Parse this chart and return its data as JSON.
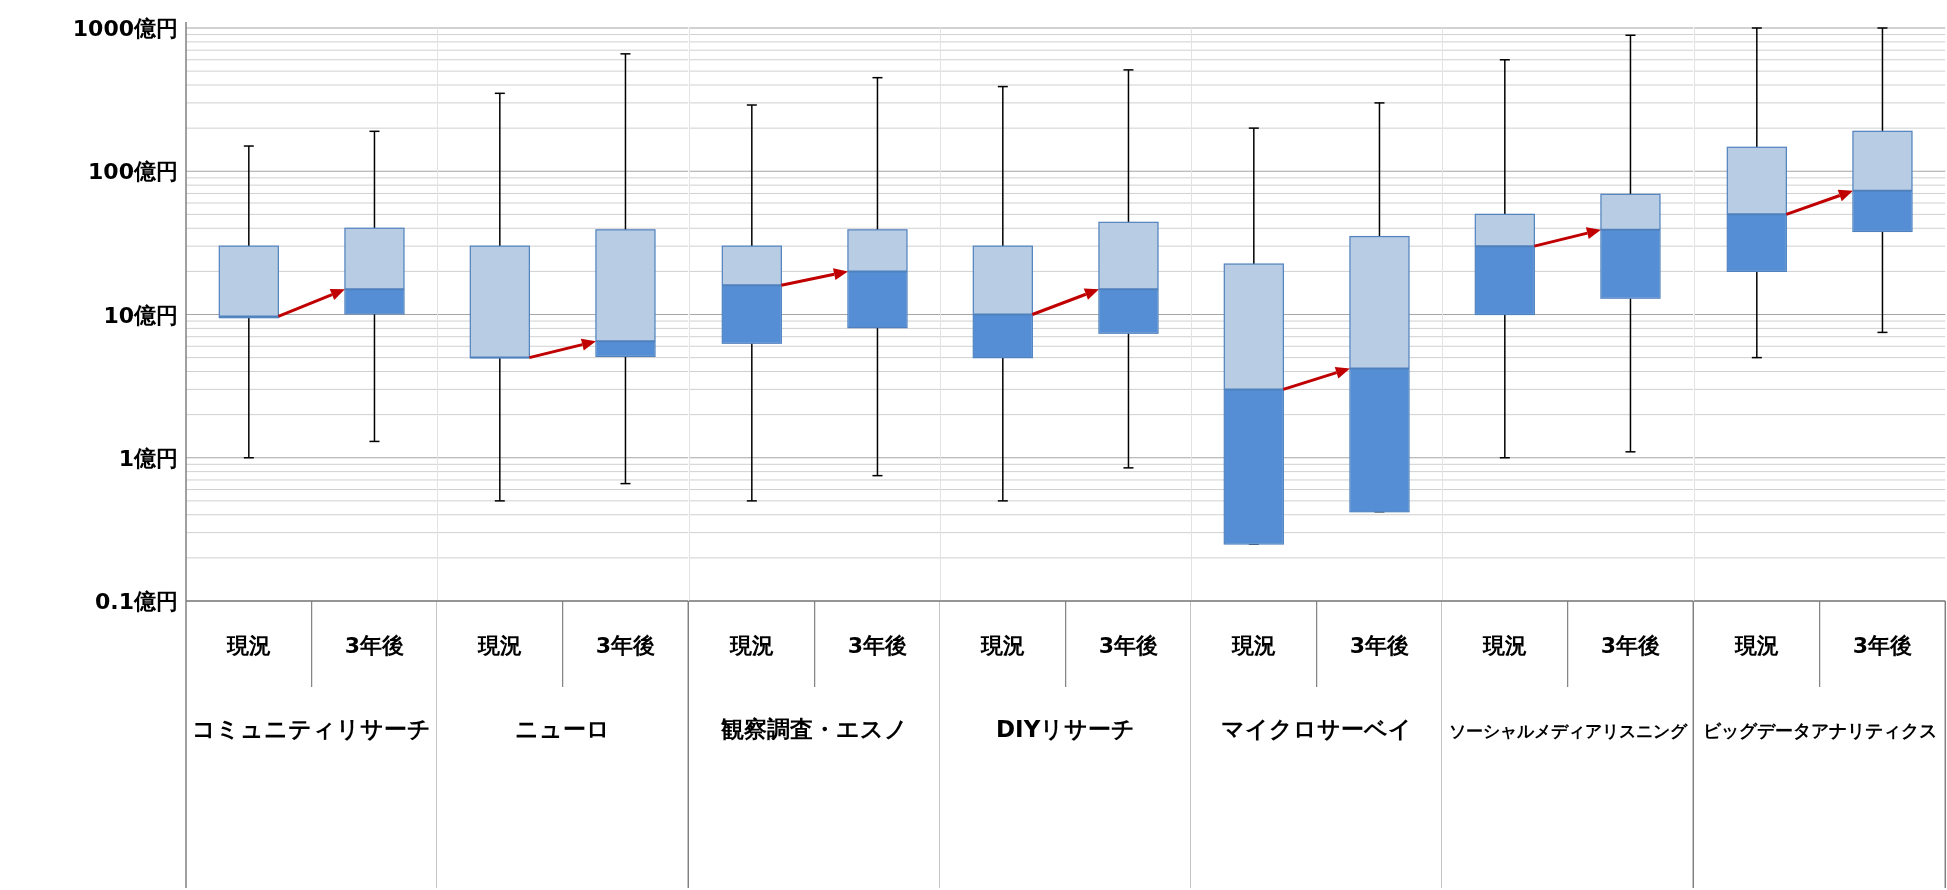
{
  "chart_data": [
    {
      "type": "box",
      "log": true,
      "grid": true,
      "title": "コミュニティリサーチ",
      "categories": [
        "現況",
        "3年後"
      ],
      "ylim": [
        0.1,
        1000
      ],
      "yticks": [
        {
          "value": 0.1,
          "label": "0.1億円"
        },
        {
          "value": 1,
          "label": "1億円"
        },
        {
          "value": 10,
          "label": "10億円"
        },
        {
          "value": 100,
          "label": "100億円"
        },
        {
          "value": 1000,
          "label": "1000億円"
        }
      ],
      "color": "#b8cce4",
      "boxes": [
        {
          "low": 1,
          "q1": 9.5,
          "median": 9.7,
          "q3": 30,
          "high": 150
        },
        {
          "low": 1.3,
          "q1": 10.1,
          "median": 15,
          "q3": 40,
          "high": 190
        }
      ]
    },
    {
      "type": "box",
      "log": true,
      "grid": true,
      "tick_labels": "x",
      "title": "ニューロ",
      "categories": [
        "現況",
        "3年後"
      ],
      "ylim": [
        0.1,
        1000
      ],
      "yticks": [
        0.1,
        1,
        10,
        100,
        1000
      ],
      "color": "#b8cce4",
      "boxes": [
        {
          "low": 0.5,
          "q1": 5,
          "median": 5,
          "q3": 30,
          "high": 350
        },
        {
          "low": 0.66,
          "q1": 5.1,
          "median": 6.5,
          "q3": 39,
          "high": 660
        }
      ]
    },
    {
      "type": "box",
      "log": true,
      "grid": true,
      "tick_labels": "x",
      "title": "観察調査・エスノ",
      "categories": [
        "現況",
        "3年後"
      ],
      "ylim": [
        0.1,
        1000
      ],
      "yticks": [
        0.1,
        1,
        10,
        100,
        1000
      ],
      "color": "#b8cce4",
      "boxes": [
        {
          "low": 0.5,
          "q1": 6.3,
          "median": 16,
          "q3": 30,
          "high": 290
        },
        {
          "low": 0.75,
          "q1": 8.1,
          "median": 20,
          "q3": 39,
          "high": 450
        }
      ]
    },
    {
      "type": "box",
      "log": true,
      "grid": true,
      "tick_labels": "x",
      "title": "DIYリサーチ",
      "categories": [
        "現況",
        "3年後"
      ],
      "ylim": [
        0.1,
        1000
      ],
      "yticks": [
        0.1,
        1,
        10,
        100,
        1000
      ],
      "color": "#b8cce4",
      "boxes": [
        {
          "low": 0.5,
          "q1": 5,
          "median": 10,
          "q3": 30,
          "high": 390
        },
        {
          "low": 0.85,
          "q1": 7.4,
          "median": 15,
          "q3": 44,
          "high": 510
        }
      ]
    },
    {
      "type": "box",
      "log": true,
      "grid": true,
      "tick_labels": "x",
      "title": "マイクロサーベイ",
      "categories": [
        "現況",
        "3年後"
      ],
      "ylim": [
        0.1,
        1000
      ],
      "yticks": [
        0.1,
        1,
        10,
        100,
        1000
      ],
      "color": "#b8cce4",
      "boxes": [
        {
          "low": 0.25,
          "q1": 0.25,
          "median": 3,
          "q3": 22.5,
          "high": 200
        },
        {
          "low": 0.42,
          "q1": 0.42,
          "median": 4.2,
          "q3": 35,
          "high": 300
        }
      ]
    },
    {
      "type": "box",
      "log": true,
      "grid": true,
      "tick_labels": "x",
      "title": "ソーシャルメディアリスニング",
      "categories": [
        "現況",
        "3年後"
      ],
      "ylim": [
        0.1,
        1000
      ],
      "yticks": [
        0.1,
        1,
        10,
        100,
        1000
      ],
      "color": "#b8cce4",
      "boxes": [
        {
          "low": 1,
          "q1": 10,
          "median": 30,
          "q3": 50,
          "high": 600
        },
        {
          "low": 1.1,
          "q1": 13,
          "median": 39,
          "q3": 69,
          "high": 890
        }
      ]
    },
    {
      "type": "box",
      "log": true,
      "grid": true,
      "tick_labels": "x",
      "title": "ビッグデータアナリティクス",
      "categories": [
        "現況",
        "3年後"
      ],
      "ylim": [
        0.1,
        1000
      ],
      "yticks": [
        0.1,
        1,
        10,
        100,
        1000
      ],
      "color": "#b8cce4",
      "boxes": [
        {
          "low": 5,
          "q1": 20,
          "median": 50,
          "q3": 147,
          "high": 1000
        },
        {
          "low": 7.5,
          "q1": 38,
          "median": 73,
          "q3": 190,
          "high": 1000
        }
      ]
    }
  ]
}
